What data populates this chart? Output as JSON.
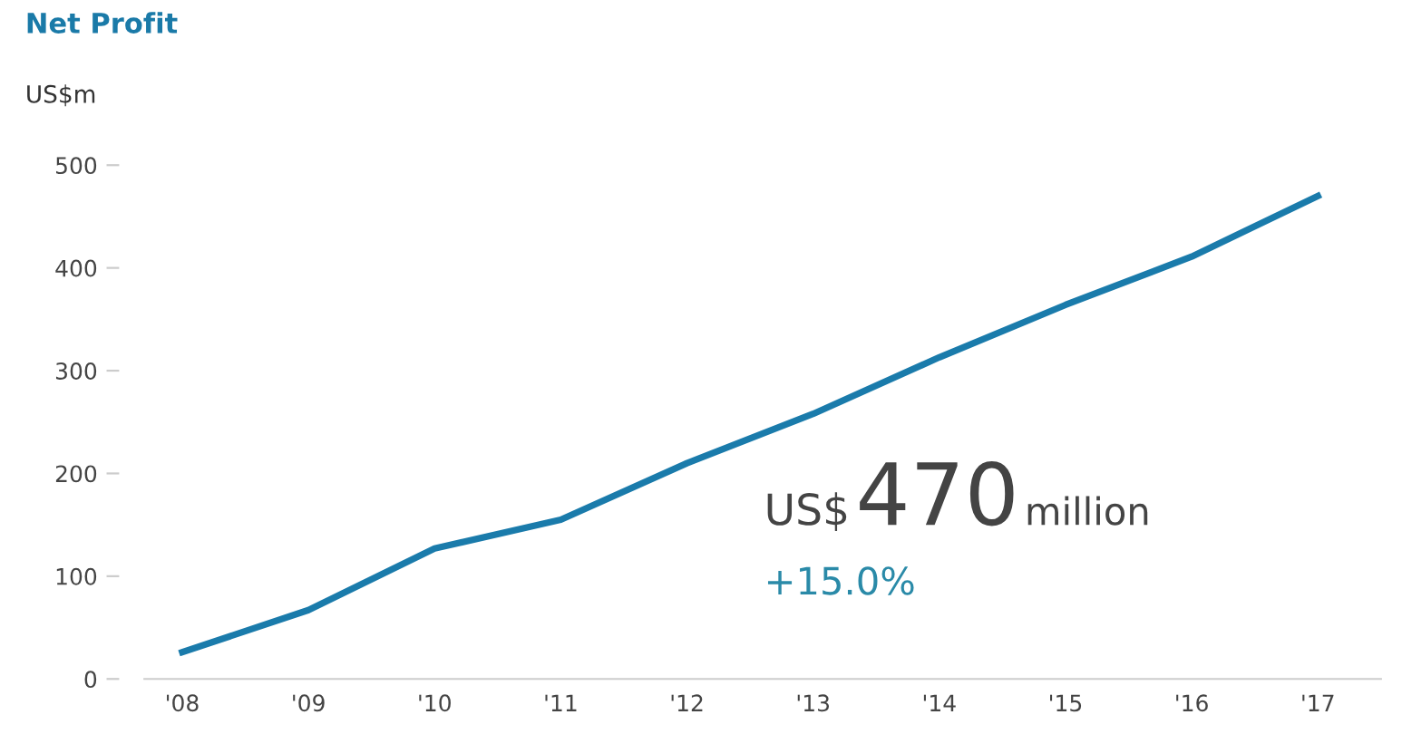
{
  "chart_data": {
    "type": "line",
    "title": "Net Profit",
    "ylabel": "US$m",
    "categories": [
      "'08",
      "'09",
      "'10",
      "'11",
      "'12",
      "'13",
      "'14",
      "'15",
      "'16",
      "'17"
    ],
    "series": [
      {
        "color": "#1a7bab",
        "values": [
          26,
          67,
          127,
          155,
          210,
          258,
          313,
          364,
          411,
          470
        ]
      }
    ],
    "ylim": [
      0,
      500
    ],
    "yticks": [
      0,
      100,
      200,
      300,
      400,
      500
    ],
    "grid": false,
    "legend": false,
    "marker": "none",
    "line_style": "solid",
    "annotations": [
      "US$",
      "470",
      "million",
      "+15.0%"
    ]
  }
}
